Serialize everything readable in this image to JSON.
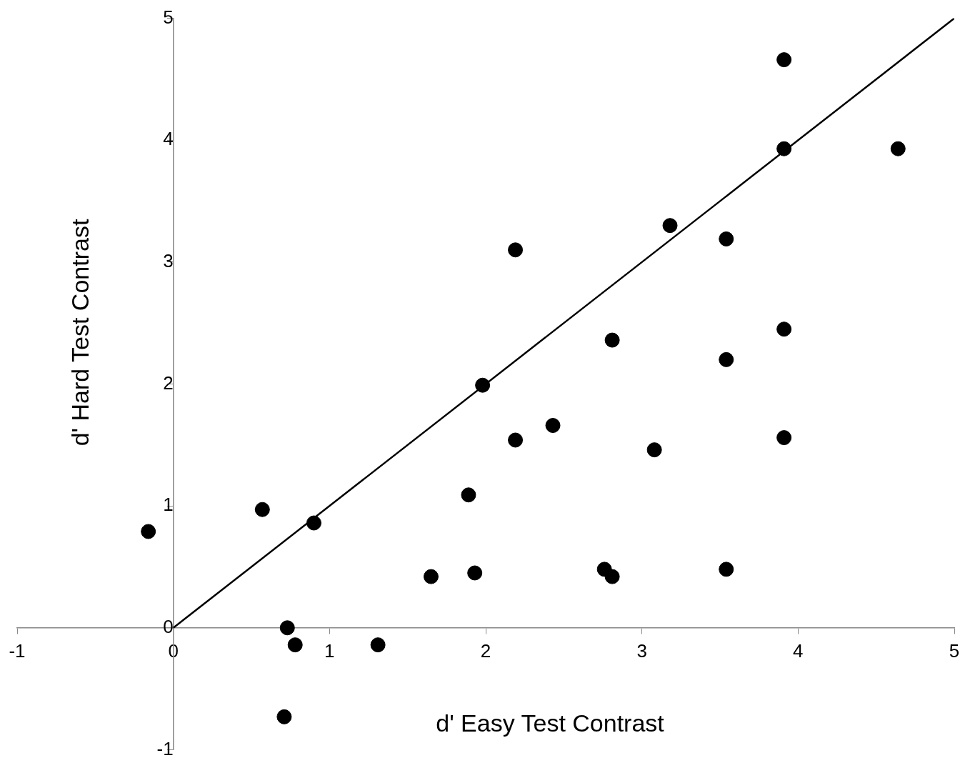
{
  "chart_data": {
    "type": "scatter",
    "xlabel": "d' Easy Test Contrast",
    "ylabel": "d' Hard Test Contrast",
    "xlim": [
      -1,
      5
    ],
    "ylim": [
      -1,
      5
    ],
    "xticks": [
      -1,
      0,
      1,
      2,
      3,
      4,
      5
    ],
    "yticks": [
      -1,
      0,
      1,
      2,
      3,
      4,
      5
    ],
    "grid": false,
    "legend": false,
    "marker": "circle",
    "series": [
      {
        "type": "scatter",
        "color": "#000000",
        "x": [
          -0.16,
          0.57,
          0.9,
          0.73,
          0.78,
          1.31,
          0.71,
          1.65,
          1.93,
          1.89,
          1.98,
          2.19,
          2.19,
          2.43,
          2.76,
          2.81,
          2.81,
          3.08,
          3.18,
          3.54,
          3.54,
          3.54,
          3.91,
          3.91,
          3.91,
          3.91,
          4.64
        ],
        "values": [
          0.79,
          0.97,
          0.86,
          0,
          -0.14,
          -0.14,
          -0.73,
          0.42,
          0.45,
          1.09,
          1.99,
          3.1,
          1.54,
          1.66,
          0.48,
          0.42,
          2.36,
          1.46,
          3.3,
          3.19,
          2.2,
          0.48,
          4.66,
          3.93,
          2.45,
          1.56,
          3.93
        ]
      },
      {
        "type": "line",
        "color": "#000000",
        "x": [
          0,
          5
        ],
        "values": [
          0,
          5
        ],
        "marker": "none",
        "line_style": "solid"
      }
    ]
  }
}
